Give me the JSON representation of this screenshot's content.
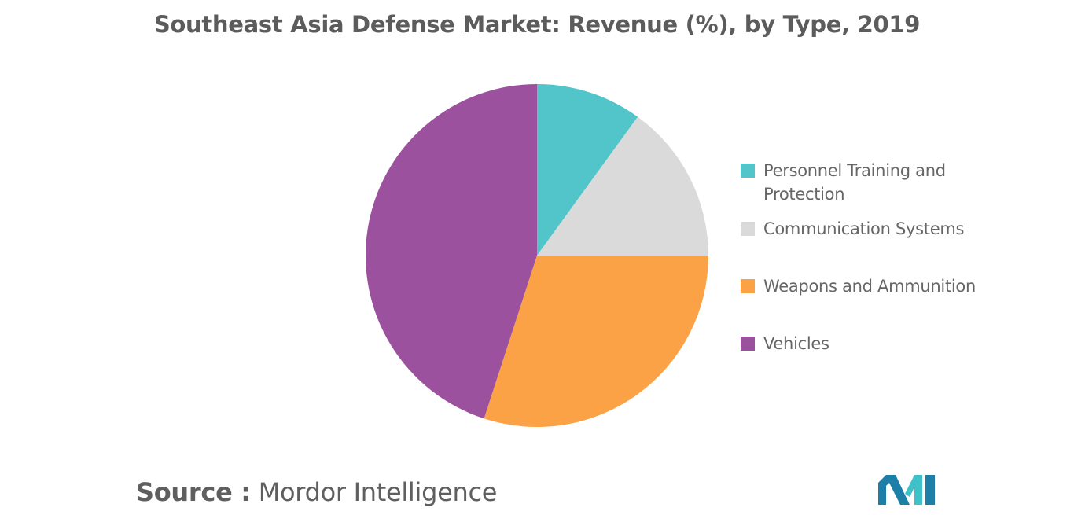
{
  "chart_data": {
    "type": "pie",
    "title": "Southeast Asia Defense Market: Revenue (%), by Type, 2019",
    "categories": [
      "Personnel Training and Protection",
      "Communication Systems",
      "Weapons and Ammunition",
      "Vehicles"
    ],
    "values": [
      10,
      15,
      30,
      45
    ],
    "colors": [
      "#52c5ca",
      "#dadada",
      "#fba247",
      "#9b519d"
    ],
    "legend_position": "right"
  },
  "source": {
    "prefix": "Source :",
    "text": "Mordor Intelligence"
  },
  "logo": {
    "icon": "mordor-intelligence-logo",
    "colors": [
      "#1d7fa8",
      "#3fc1c9"
    ]
  }
}
